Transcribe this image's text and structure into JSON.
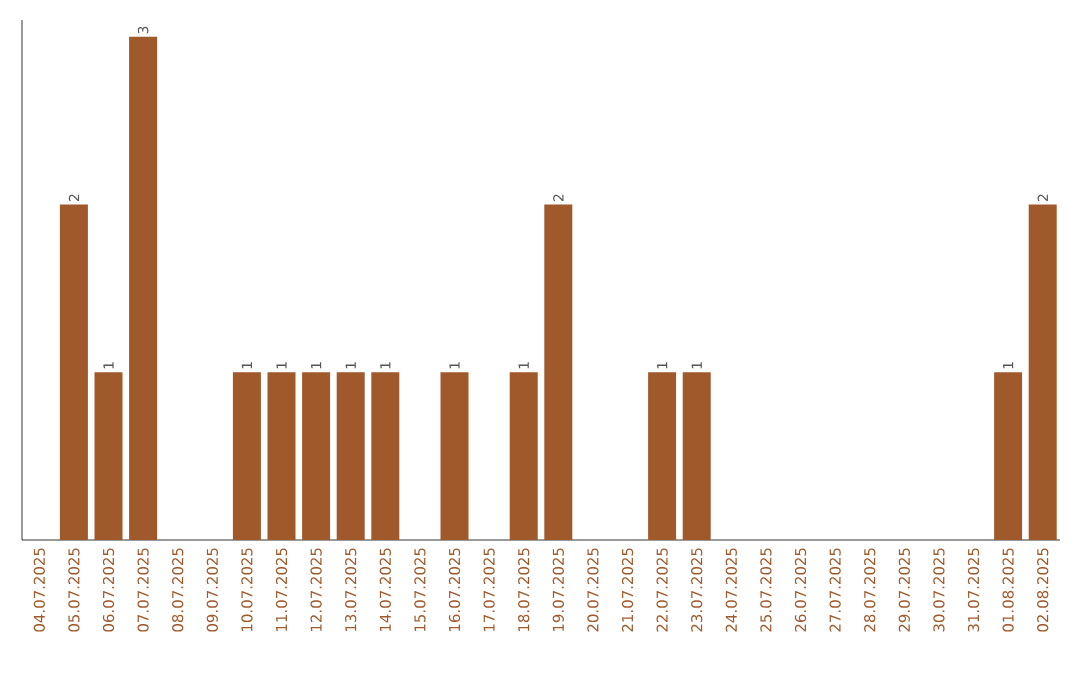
{
  "chart_data": {
    "type": "bar",
    "categories": [
      "04.07.2025",
      "05.07.2025",
      "06.07.2025",
      "07.07.2025",
      "08.07.2025",
      "09.07.2025",
      "10.07.2025",
      "11.07.2025",
      "12.07.2025",
      "13.07.2025",
      "14.07.2025",
      "15.07.2025",
      "16.07.2025",
      "17.07.2025",
      "18.07.2025",
      "19.07.2025",
      "20.07.2025",
      "21.07.2025",
      "22.07.2025",
      "23.07.2025",
      "24.07.2025",
      "25.07.2025",
      "26.07.2025",
      "27.07.2025",
      "28.07.2025",
      "29.07.2025",
      "30.07.2025",
      "31.07.2025",
      "01.08.2025",
      "02.08.2025"
    ],
    "values": [
      0,
      2,
      1,
      3,
      0,
      0,
      1,
      1,
      1,
      1,
      1,
      0,
      1,
      0,
      1,
      2,
      0,
      0,
      1,
      1,
      0,
      0,
      0,
      0,
      0,
      0,
      0,
      0,
      1,
      2
    ],
    "value_labels": [
      null,
      "2",
      "1",
      "3",
      null,
      null,
      "1",
      "1",
      "1",
      "1",
      "1",
      null,
      "1",
      null,
      "1",
      "2",
      null,
      null,
      "1",
      "1",
      null,
      null,
      null,
      null,
      null,
      null,
      null,
      null,
      "1",
      "2"
    ],
    "color": "#a0592b",
    "ylim": [
      0,
      3.1
    ]
  }
}
